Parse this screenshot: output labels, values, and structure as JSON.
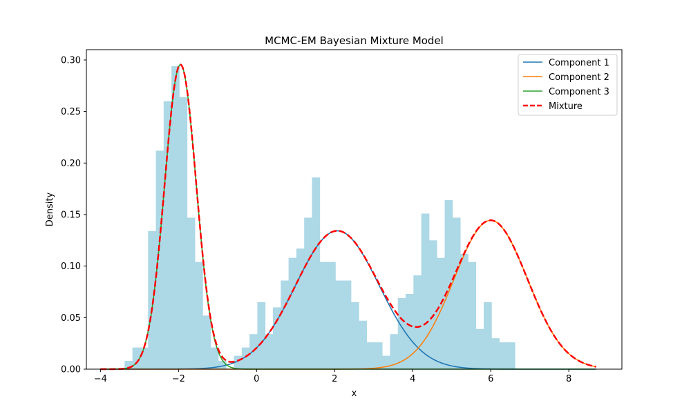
{
  "chart_data": {
    "type": "histogram+line",
    "title": "MCMC-EM Bayesian Mixture Model",
    "xlabel": "x",
    "ylabel": "Density",
    "xlim": [
      -4.36,
      9.36
    ],
    "ylim": [
      0,
      0.31
    ],
    "xticks": [
      -4,
      -2,
      0,
      2,
      4,
      6,
      8
    ],
    "xtick_labels": [
      "−4",
      "−2",
      "0",
      "2",
      "4",
      "6",
      "8"
    ],
    "yticks": [
      0,
      0.05,
      0.1,
      0.15,
      0.2,
      0.25,
      0.3
    ],
    "ytick_labels": [
      "0.00",
      "0.05",
      "0.10",
      "0.15",
      "0.20",
      "0.25",
      "0.30"
    ],
    "grid": false,
    "legend_position": "upper right",
    "histogram": {
      "color": "#add8e6",
      "bin_width": 0.2,
      "bins_start": -3.98,
      "densities": [
        0.0,
        0.0,
        0.0,
        0.008,
        0.021,
        0.021,
        0.134,
        0.212,
        0.26,
        0.294,
        0.264,
        0.147,
        0.104,
        0.052,
        0.021,
        0.008,
        0.0,
        0.013,
        0.021,
        0.034,
        0.065,
        0.034,
        0.06,
        0.086,
        0.108,
        0.117,
        0.147,
        0.186,
        0.104,
        0.104,
        0.086,
        0.086,
        0.065,
        0.047,
        0.026,
        0.026,
        0.013,
        0.034,
        0.069,
        0.073,
        0.091,
        0.151,
        0.125,
        0.108,
        0.164,
        0.147,
        0.112,
        0.104,
        0.039,
        0.065,
        0.03,
        0.026,
        0.026
      ]
    },
    "series": [
      {
        "name": "Component 1",
        "color": "#1f77b4",
        "style": "solid",
        "weight": 0.36,
        "mean": 2.07,
        "sd": 1.07
      },
      {
        "name": "Component 2",
        "color": "#ff7f0e",
        "style": "solid",
        "weight": 0.34,
        "mean": 6.0,
        "sd": 0.94
      },
      {
        "name": "Component 3",
        "color": "#2ca02c",
        "style": "solid",
        "weight": 0.3,
        "mean": -1.95,
        "sd": 0.405
      },
      {
        "name": "Mixture",
        "color": "#ff0000",
        "style": "dashed",
        "components": [
          "Component 1",
          "Component 2",
          "Component 3"
        ]
      }
    ],
    "curve_x_range": [
      -4.0,
      8.7
    ]
  }
}
